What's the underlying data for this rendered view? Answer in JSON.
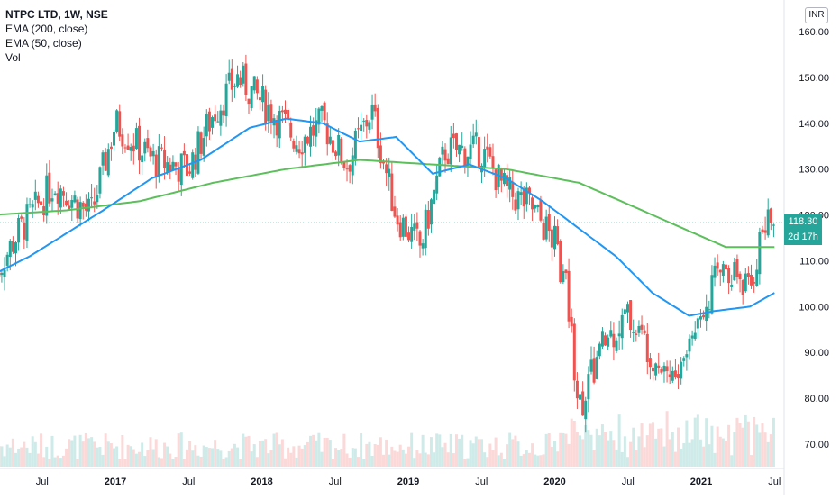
{
  "legend": {
    "title": "NTPC LTD, 1W, NSE",
    "ema200": "EMA (200, close)",
    "ema50": "EMA (50, close)",
    "vol": "Vol"
  },
  "currency": "INR",
  "last_price_label": "118.30",
  "countdown_label": "2d 17h",
  "colors": {
    "up": "#26a69a",
    "down": "#ef5350",
    "ema200": "#5cbf5c",
    "ema50": "#2196f3",
    "last_price": "#26a69a",
    "axis_text": "#131722"
  },
  "chart_data": {
    "type": "candlestick",
    "y_ticks": [
      "160.00",
      "150.00",
      "140.00",
      "130.00",
      "120.00",
      "110.00",
      "100.00",
      "90.00",
      "80.00",
      "70.00"
    ],
    "ylim": [
      65,
      163
    ],
    "x_ticks": [
      {
        "label": "Jul",
        "bold": false
      },
      {
        "label": "2017",
        "bold": true
      },
      {
        "label": "Jul",
        "bold": false
      },
      {
        "label": "2018",
        "bold": true
      },
      {
        "label": "Jul",
        "bold": false
      },
      {
        "label": "2019",
        "bold": true
      },
      {
        "label": "Jul",
        "bold": false
      },
      {
        "label": "2020",
        "bold": true
      },
      {
        "label": "Jul",
        "bold": false
      },
      {
        "label": "2021",
        "bold": true
      },
      {
        "label": "Jul",
        "bold": false
      }
    ],
    "x_tick_dates": [
      "2016-07",
      "2017-01",
      "2017-07",
      "2018-01",
      "2018-07",
      "2019-01",
      "2019-07",
      "2020-01",
      "2020-07",
      "2021-01",
      "2021-07"
    ],
    "x_range": [
      "2016-03",
      "2021-08"
    ],
    "last_price": 118.3,
    "price_path": [
      {
        "date": "2016-03",
        "value": 106
      },
      {
        "date": "2016-05",
        "value": 116
      },
      {
        "date": "2016-08",
        "value": 127
      },
      {
        "date": "2016-11",
        "value": 120
      },
      {
        "date": "2017-01",
        "value": 140
      },
      {
        "date": "2017-04",
        "value": 132
      },
      {
        "date": "2017-07",
        "value": 130
      },
      {
        "date": "2017-09",
        "value": 142
      },
      {
        "date": "2017-11",
        "value": 150
      },
      {
        "date": "2018-02",
        "value": 142
      },
      {
        "date": "2018-04",
        "value": 136
      },
      {
        "date": "2018-06",
        "value": 140
      },
      {
        "date": "2018-08",
        "value": 131
      },
      {
        "date": "2018-10",
        "value": 143
      },
      {
        "date": "2018-12",
        "value": 120
      },
      {
        "date": "2019-02",
        "value": 113
      },
      {
        "date": "2019-04",
        "value": 134
      },
      {
        "date": "2019-07",
        "value": 134
      },
      {
        "date": "2019-09",
        "value": 125
      },
      {
        "date": "2019-11",
        "value": 122
      },
      {
        "date": "2020-01",
        "value": 114
      },
      {
        "date": "2020-02",
        "value": 103
      },
      {
        "date": "2020-03",
        "value": 78
      },
      {
        "date": "2020-05",
        "value": 92
      },
      {
        "date": "2020-07",
        "value": 98
      },
      {
        "date": "2020-09",
        "value": 90
      },
      {
        "date": "2020-11",
        "value": 84
      },
      {
        "date": "2021-01",
        "value": 100
      },
      {
        "date": "2021-03",
        "value": 110
      },
      {
        "date": "2021-05",
        "value": 103
      },
      {
        "date": "2021-06",
        "value": 117
      },
      {
        "date": "2021-07",
        "value": 118.3
      }
    ],
    "ema50": [
      {
        "date": "2016-03",
        "value": 107
      },
      {
        "date": "2016-06",
        "value": 111
      },
      {
        "date": "2016-09",
        "value": 116
      },
      {
        "date": "2016-12",
        "value": 121
      },
      {
        "date": "2017-04",
        "value": 128
      },
      {
        "date": "2017-08",
        "value": 132
      },
      {
        "date": "2017-12",
        "value": 139
      },
      {
        "date": "2018-03",
        "value": 141
      },
      {
        "date": "2018-06",
        "value": 140
      },
      {
        "date": "2018-09",
        "value": 136
      },
      {
        "date": "2018-12",
        "value": 137
      },
      {
        "date": "2019-03",
        "value": 129
      },
      {
        "date": "2019-06",
        "value": 131
      },
      {
        "date": "2019-09",
        "value": 128
      },
      {
        "date": "2019-12",
        "value": 123
      },
      {
        "date": "2020-03",
        "value": 117
      },
      {
        "date": "2020-06",
        "value": 111
      },
      {
        "date": "2020-09",
        "value": 103
      },
      {
        "date": "2020-12",
        "value": 98
      },
      {
        "date": "2021-02",
        "value": 99
      },
      {
        "date": "2021-05",
        "value": 100
      },
      {
        "date": "2021-07",
        "value": 103
      }
    ],
    "ema200": [
      {
        "date": "2016-03",
        "value": 120
      },
      {
        "date": "2016-09",
        "value": 121
      },
      {
        "date": "2017-03",
        "value": 123
      },
      {
        "date": "2017-09",
        "value": 127
      },
      {
        "date": "2018-03",
        "value": 130
      },
      {
        "date": "2018-09",
        "value": 132
      },
      {
        "date": "2019-03",
        "value": 131
      },
      {
        "date": "2019-09",
        "value": 130
      },
      {
        "date": "2020-03",
        "value": 127
      },
      {
        "date": "2020-09",
        "value": 120
      },
      {
        "date": "2021-03",
        "value": 113
      },
      {
        "date": "2021-07",
        "value": 113
      }
    ]
  }
}
